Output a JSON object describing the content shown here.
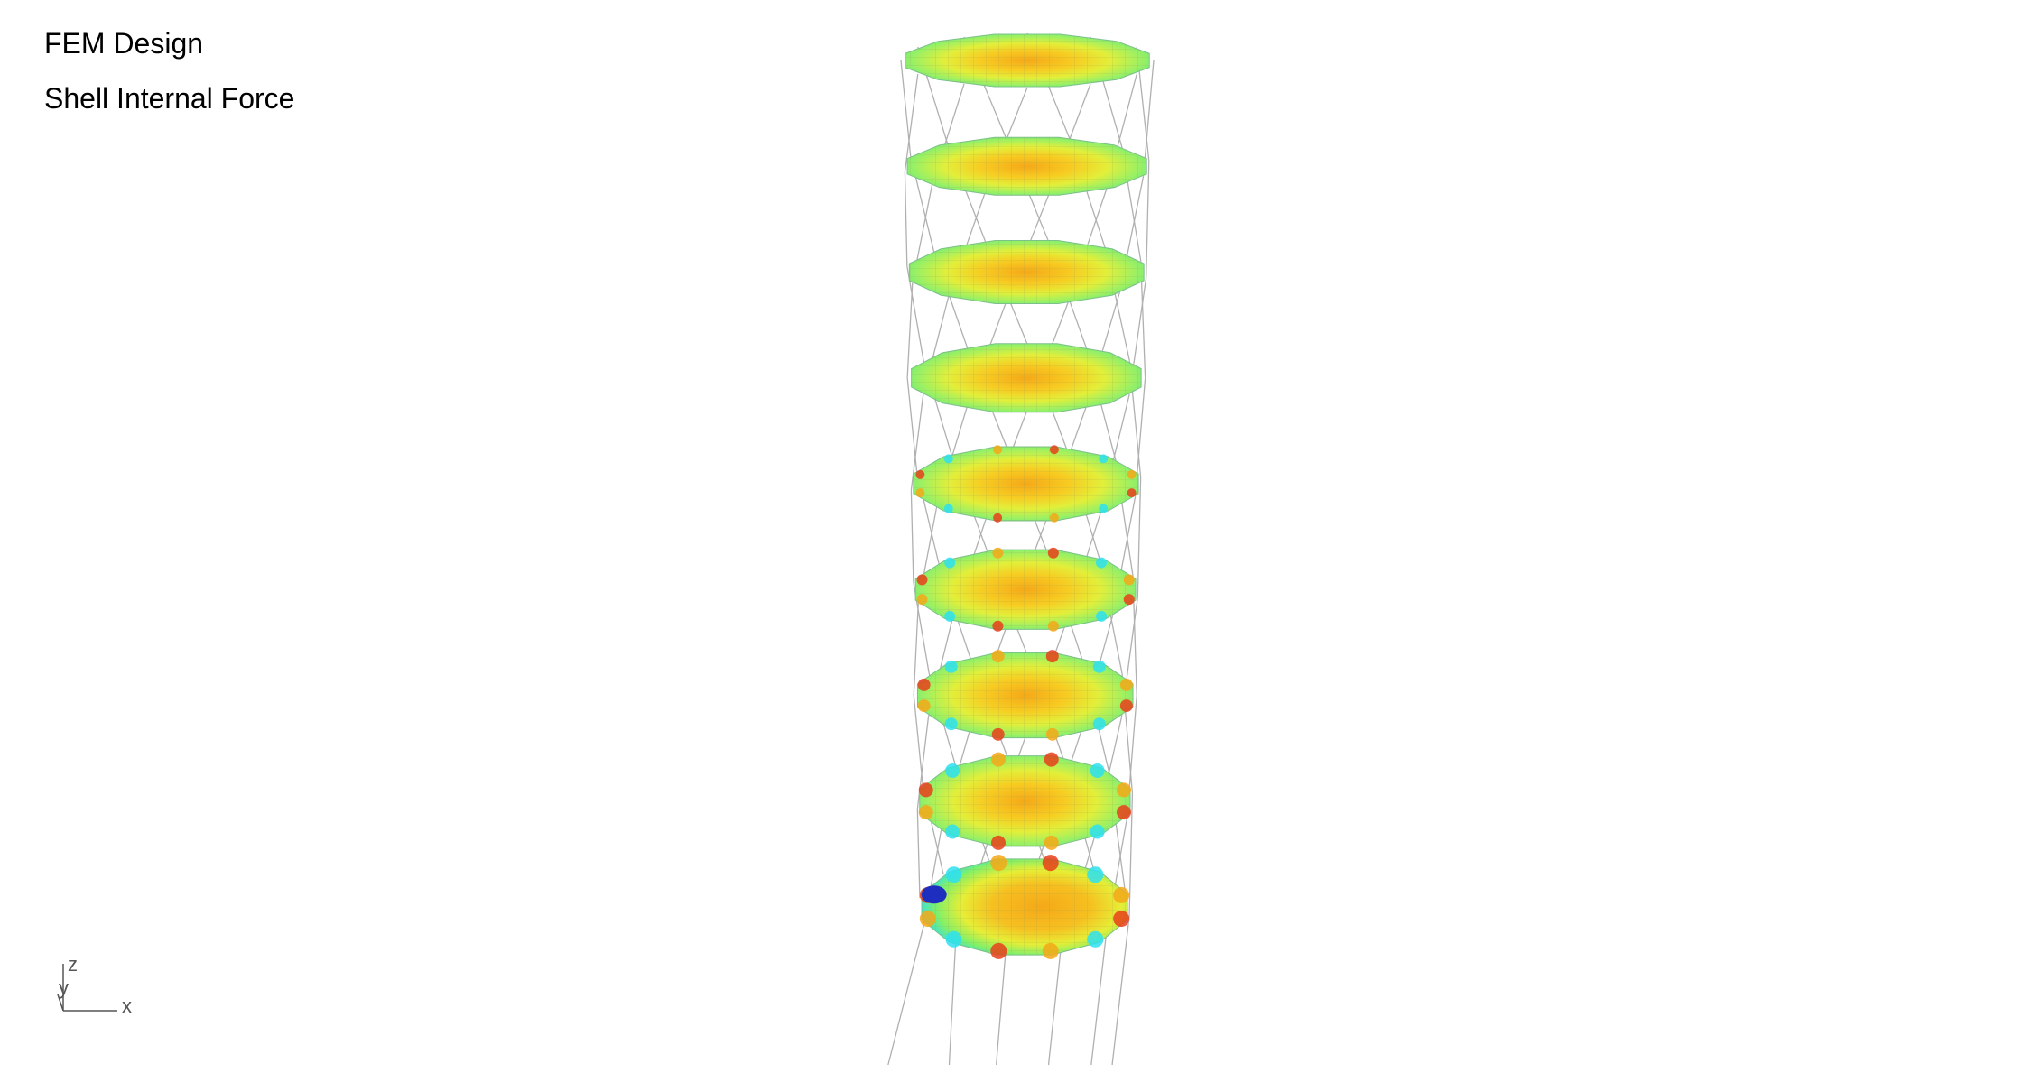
{
  "header": {
    "title": "FEM Design",
    "subtitle": "Shell Internal Force"
  },
  "axis_triad": {
    "z": "z",
    "y": "y",
    "x": "x"
  },
  "model": {
    "slab_count": 9,
    "column_count": 12
  },
  "colors": {
    "background": "#ffffff",
    "wire": "#b0b0b0",
    "mesh_line": "#9aa07a",
    "contour_low": "#1e2fbf",
    "contour_mid_low": "#2ee0f0",
    "contour_mid": "#7ff06a",
    "contour_mid_high": "#f5ea2a",
    "contour_high": "#f5a818",
    "contour_peak": "#e8401a"
  }
}
